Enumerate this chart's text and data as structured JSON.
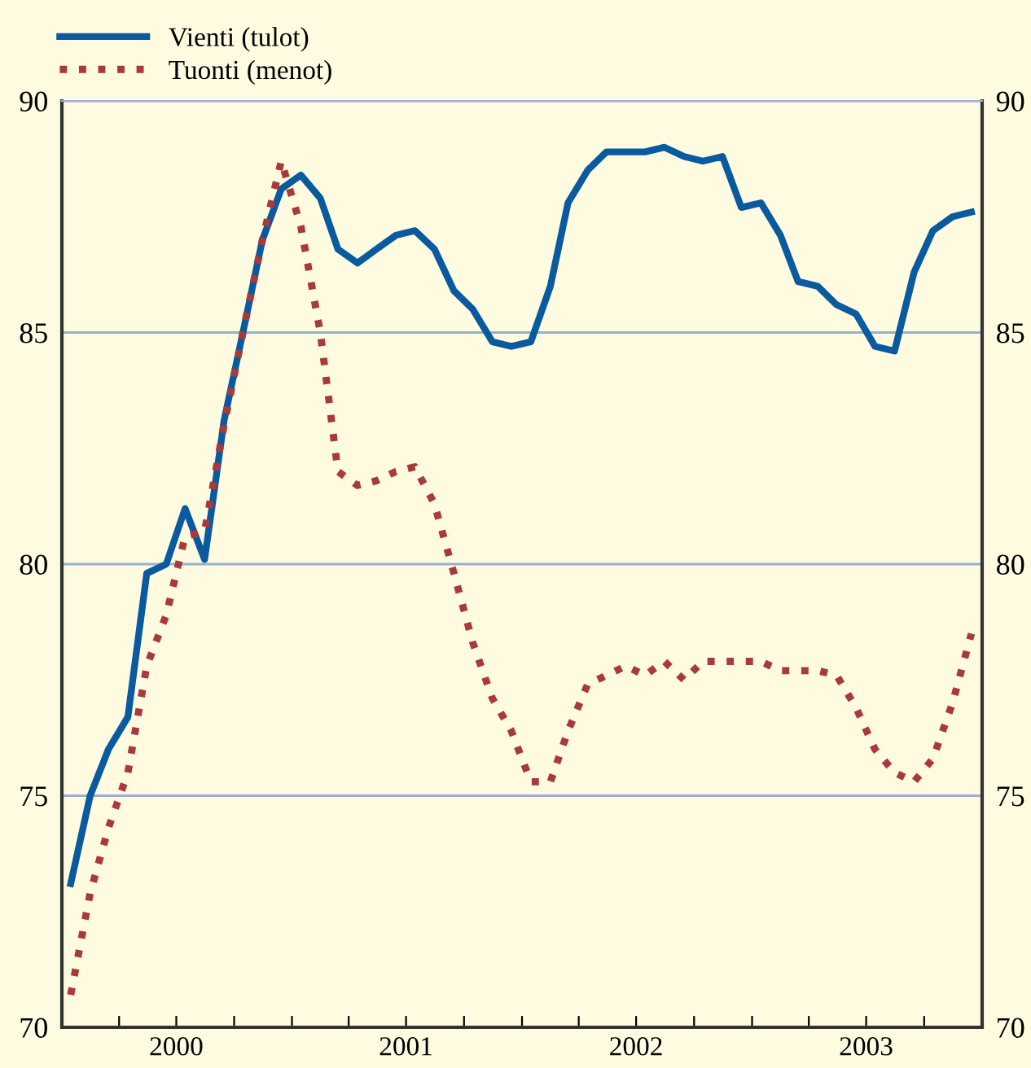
{
  "chart_data": {
    "type": "line",
    "x": [
      "2000-01-15",
      "2000-02-15",
      "2000-03-15",
      "2000-04-15",
      "2000-05-15",
      "2000-06-15",
      "2000-07-15",
      "2000-08-15",
      "2000-09-15",
      "2000-10-15",
      "2000-11-15",
      "2000-12-15",
      "2001-01-15",
      "2001-02-15",
      "2001-03-15",
      "2001-04-15",
      "2001-05-15",
      "2001-06-15",
      "2001-07-15",
      "2001-08-15",
      "2001-09-15",
      "2001-10-15",
      "2001-11-15",
      "2001-12-15",
      "2002-01-15",
      "2002-02-15",
      "2002-03-15",
      "2002-04-15",
      "2002-05-15",
      "2002-06-15",
      "2002-07-15",
      "2002-08-15",
      "2002-09-15",
      "2002-10-15",
      "2002-11-15",
      "2002-12-15",
      "2003-01-15",
      "2003-02-15",
      "2003-03-15",
      "2003-04-15",
      "2003-05-15",
      "2003-06-15",
      "2003-07-15",
      "2003-08-15",
      "2003-09-15",
      "2003-10-15",
      "2003-11-15",
      "2003-12-15"
    ],
    "series": [
      {
        "name": "Vienti (tulot)",
        "color": "#0a5aa0",
        "line_style": "solid",
        "values": [
          73.1,
          75.0,
          76.0,
          76.7,
          79.8,
          80.0,
          81.2,
          80.1,
          83.1,
          85.0,
          87.0,
          88.1,
          88.4,
          87.9,
          86.8,
          86.5,
          86.8,
          87.1,
          87.2,
          86.8,
          85.9,
          85.5,
          84.8,
          84.7,
          84.8,
          86.0,
          87.8,
          88.5,
          88.9,
          88.9,
          88.9,
          89.0,
          88.8,
          88.7,
          88.8,
          87.7,
          87.8,
          87.1,
          86.1,
          86.0,
          85.6,
          85.4,
          84.7,
          84.6,
          86.3,
          87.2,
          87.5,
          87.6
        ]
      },
      {
        "name": "Tuonti (menot)",
        "color": "#a83a3a",
        "line_style": "dotted",
        "values": [
          70.7,
          72.9,
          74.3,
          75.5,
          77.8,
          78.9,
          80.6,
          80.7,
          83.0,
          85.0,
          87.0,
          88.7,
          87.3,
          85.0,
          82.0,
          81.7,
          81.8,
          82.0,
          82.1,
          81.3,
          79.8,
          78.3,
          77.1,
          76.4,
          75.3,
          75.3,
          76.4,
          77.4,
          77.6,
          77.8,
          77.6,
          77.9,
          77.5,
          77.9,
          77.9,
          77.9,
          77.9,
          77.7,
          77.7,
          77.7,
          77.6,
          76.9,
          76.0,
          75.5,
          75.3,
          75.8,
          77.0,
          78.5
        ]
      }
    ],
    "xlim": [
      "2000-01-01",
      "2004-01-01"
    ],
    "xticks": [
      {
        "value": "2000-01-01",
        "label": null
      },
      {
        "value": "2000-04-01",
        "label": null
      },
      {
        "value": "2000-07-01",
        "label": "2000"
      },
      {
        "value": "2000-10-01",
        "label": null
      },
      {
        "value": "2001-01-01",
        "label": null
      },
      {
        "value": "2001-04-01",
        "label": null
      },
      {
        "value": "2001-07-01",
        "label": "2001"
      },
      {
        "value": "2001-10-01",
        "label": null
      },
      {
        "value": "2002-01-01",
        "label": null
      },
      {
        "value": "2002-04-01",
        "label": null
      },
      {
        "value": "2002-07-01",
        "label": "2002"
      },
      {
        "value": "2002-10-01",
        "label": null
      },
      {
        "value": "2003-01-01",
        "label": null
      },
      {
        "value": "2003-04-01",
        "label": null
      },
      {
        "value": "2003-07-01",
        "label": "2003"
      },
      {
        "value": "2003-10-01",
        "label": null
      },
      {
        "value": "2004-01-01",
        "label": null
      }
    ],
    "ylim": [
      70,
      90
    ],
    "yticks": [
      70,
      75,
      80,
      85,
      90
    ],
    "y2lim": [
      70,
      90
    ],
    "y2ticks": [
      70,
      75,
      80,
      85,
      90
    ],
    "grid": "y",
    "legend": "top left"
  }
}
